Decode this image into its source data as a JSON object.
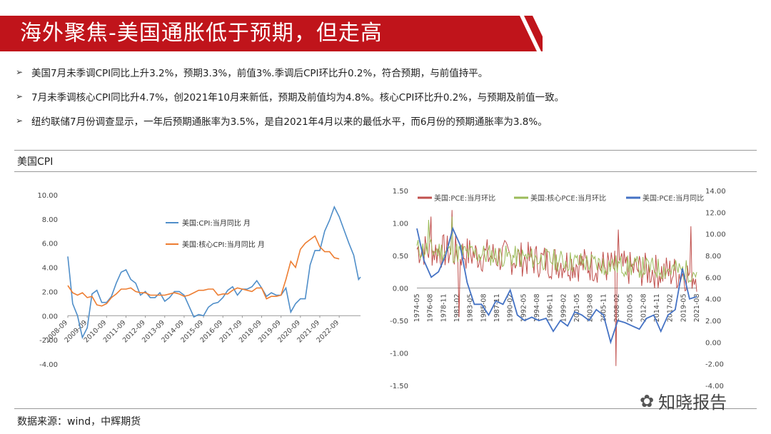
{
  "slide": {
    "title": "海外聚焦-美国通胀低于预期，但走高",
    "bullets": [
      "美国7月未季调CPI同比上升3.2%，预期3.3%，前值3%.季调后CPI环比升0.2%，符合预期，与前值持平。",
      "7月未季调核心CPI同比升4.7%，创2021年10月来新低，预期及前值均为4.8%。核心CPI环比升0.2%，与预期及前值一致。",
      "纽约联储7月份调查显示，一年后预期通胀率为3.5%，是自2021年4月以来的最低水平，而6月份的预期通胀率为3.8%。"
    ],
    "section_title": "美国CPI",
    "source": "数据来源：wind，中辉期货",
    "watermark": "知晓报告",
    "banner_color": "#c0141b"
  },
  "chart_data": [
    {
      "type": "line",
      "ylim": [
        -4,
        10
      ],
      "yticks": [
        "10.00",
        "8.00",
        "6.00",
        "4.00",
        "2.00",
        "0.00",
        "-2.00",
        "-4.00"
      ],
      "xticks": [
        "2008-09",
        "2009-09",
        "2010-09",
        "2011-09",
        "2012-09",
        "2013-09",
        "2014-09",
        "2015-09",
        "2016-09",
        "2017-09",
        "2018-09",
        "2019-09",
        "2020-09",
        "2021-09",
        "2022-09"
      ],
      "series": [
        {
          "name": "美国:CPI:当月同比 月",
          "color": "#4f8ec9",
          "points": [
            [
              0,
              4.9
            ],
            [
              0.25,
              1.0
            ],
            [
              0.5,
              0.0
            ],
            [
              0.75,
              -1.8
            ],
            [
              1,
              -1.0
            ],
            [
              1.25,
              1.8
            ],
            [
              1.5,
              2.1
            ],
            [
              1.75,
              1.1
            ],
            [
              2,
              1.1
            ],
            [
              2.25,
              1.6
            ],
            [
              2.5,
              2.7
            ],
            [
              2.75,
              3.6
            ],
            [
              3,
              3.8
            ],
            [
              3.25,
              3.0
            ],
            [
              3.5,
              2.7
            ],
            [
              3.75,
              1.7
            ],
            [
              4,
              2.0
            ],
            [
              4.25,
              1.5
            ],
            [
              4.5,
              1.5
            ],
            [
              4.75,
              1.9
            ],
            [
              5,
              1.2
            ],
            [
              5.25,
              1.5
            ],
            [
              5.5,
              2.0
            ],
            [
              5.75,
              2.0
            ],
            [
              6,
              1.7
            ],
            [
              6.25,
              0.8
            ],
            [
              6.5,
              -0.1
            ],
            [
              6.75,
              0.1
            ],
            [
              7,
              0.0
            ],
            [
              7.25,
              0.7
            ],
            [
              7.5,
              1.0
            ],
            [
              7.75,
              1.1
            ],
            [
              8,
              1.5
            ],
            [
              8.25,
              2.1
            ],
            [
              8.5,
              2.4
            ],
            [
              8.75,
              1.7
            ],
            [
              9,
              2.2
            ],
            [
              9.25,
              2.2
            ],
            [
              9.5,
              2.4
            ],
            [
              9.75,
              2.9
            ],
            [
              10,
              2.3
            ],
            [
              10.25,
              1.6
            ],
            [
              10.5,
              1.9
            ],
            [
              10.75,
              1.7
            ],
            [
              11,
              1.7
            ],
            [
              11.25,
              2.3
            ],
            [
              11.5,
              0.3
            ],
            [
              11.75,
              1.0
            ],
            [
              12,
              1.4
            ],
            [
              12.25,
              1.4
            ],
            [
              12.5,
              4.2
            ],
            [
              12.75,
              5.4
            ],
            [
              13,
              5.4
            ],
            [
              13.25,
              7.0
            ],
            [
              13.5,
              7.9
            ],
            [
              13.75,
              9.0
            ],
            [
              14,
              8.2
            ],
            [
              14.25,
              7.1
            ],
            [
              14.5,
              6.0
            ],
            [
              14.75,
              5.0
            ],
            [
              15,
              3.0
            ],
            [
              15.1,
              3.2
            ]
          ]
        },
        {
          "name": "美国:核心CPI:当月同比 月",
          "color": "#ed7d31",
          "points": [
            [
              0,
              2.5
            ],
            [
              0.25,
              1.9
            ],
            [
              0.5,
              1.7
            ],
            [
              0.75,
              1.9
            ],
            [
              1,
              1.5
            ],
            [
              1.25,
              1.6
            ],
            [
              1.5,
              0.9
            ],
            [
              1.75,
              0.8
            ],
            [
              2,
              1.0
            ],
            [
              2.25,
              1.5
            ],
            [
              2.5,
              1.8
            ],
            [
              2.75,
              2.2
            ],
            [
              3,
              2.2
            ],
            [
              3.25,
              2.3
            ],
            [
              3.5,
              2.0
            ],
            [
              3.75,
              1.9
            ],
            [
              4,
              1.9
            ],
            [
              4.25,
              1.7
            ],
            [
              4.5,
              1.7
            ],
            [
              4.75,
              1.7
            ],
            [
              5,
              1.7
            ],
            [
              5.25,
              1.8
            ],
            [
              5.5,
              1.9
            ],
            [
              5.75,
              1.8
            ],
            [
              6,
              1.6
            ],
            [
              6.25,
              1.7
            ],
            [
              6.5,
              1.9
            ],
            [
              6.75,
              2.1
            ],
            [
              7,
              2.1
            ],
            [
              7.25,
              2.2
            ],
            [
              7.5,
              2.2
            ],
            [
              7.75,
              1.7
            ],
            [
              8,
              1.8
            ],
            [
              8.25,
              1.8
            ],
            [
              8.5,
              2.1
            ],
            [
              8.75,
              2.3
            ],
            [
              9,
              2.2
            ],
            [
              9.25,
              2.1
            ],
            [
              9.5,
              2.0
            ],
            [
              9.75,
              2.3
            ],
            [
              10,
              2.3
            ],
            [
              10.25,
              1.4
            ],
            [
              10.5,
              1.6
            ],
            [
              10.75,
              1.6
            ],
            [
              11,
              1.7
            ],
            [
              11.25,
              3.0
            ],
            [
              11.5,
              4.5
            ],
            [
              11.75,
              4.0
            ],
            [
              12,
              5.5
            ],
            [
              12.25,
              6.0
            ],
            [
              12.5,
              6.3
            ],
            [
              12.75,
              6.6
            ],
            [
              13,
              5.7
            ],
            [
              13.25,
              5.3
            ],
            [
              13.5,
              5.3
            ],
            [
              13.75,
              4.8
            ],
            [
              14,
              4.7
            ]
          ]
        }
      ]
    },
    {
      "type": "line",
      "ylim": [
        -1.5,
        1.5
      ],
      "y2lim": [
        -4,
        14
      ],
      "yticks": [
        "1.50",
        "1.00",
        "0.50",
        "0.00",
        "-0.50",
        "-1.00",
        "-1.50"
      ],
      "y2ticks": [
        "14.00",
        "12.00",
        "10.00",
        "8.00",
        "6.00",
        "4.00",
        "2.00",
        "0.00",
        "-2.00",
        "-4.00"
      ],
      "xticks": [
        "1974-05",
        "1976-08",
        "1978-11",
        "1981-02",
        "1983-05",
        "1985-08",
        "1987-11",
        "1990-02",
        "1992-05",
        "1994-08",
        "1996-11",
        "1999-02",
        "2001-05",
        "2003-08",
        "2005-11",
        "2008-02",
        "2010-05",
        "2012-08",
        "2014-11",
        "2017-02",
        "2019-05",
        "2021-08"
      ],
      "series": [
        {
          "name": "美国:PCE:当月环比",
          "color": "#c0504d",
          "axis": "left"
        },
        {
          "name": "美国:核心PCE:当月环比",
          "color": "#9bbb59",
          "axis": "left"
        },
        {
          "name": "美国:PCE:当月同比",
          "color": "#4472c4",
          "axis": "right",
          "points": [
            [
              0,
              10.5
            ],
            [
              1,
              7.5
            ],
            [
              2,
              6.0
            ],
            [
              3,
              6.5
            ],
            [
              4,
              8.0
            ],
            [
              5,
              10.5
            ],
            [
              6,
              9.0
            ],
            [
              7,
              5.5
            ],
            [
              8,
              3.5
            ],
            [
              9,
              3.5
            ],
            [
              10,
              2.5
            ],
            [
              11,
              3.8
            ],
            [
              12,
              3.5
            ],
            [
              13,
              4.8
            ],
            [
              14,
              2.5
            ],
            [
              15,
              2.0
            ],
            [
              16,
              2.3
            ],
            [
              17,
              2.0
            ],
            [
              18,
              2.2
            ],
            [
              19,
              1.0
            ],
            [
              20,
              2.0
            ],
            [
              21,
              1.5
            ],
            [
              22,
              2.8
            ],
            [
              23,
              2.5
            ],
            [
              24,
              2.0
            ],
            [
              25,
              3.0
            ],
            [
              26,
              2.5
            ],
            [
              27,
              0.0
            ],
            [
              28,
              2.0
            ],
            [
              29,
              1.8
            ],
            [
              30,
              1.5
            ],
            [
              31,
              1.2
            ],
            [
              32,
              2.2
            ],
            [
              33,
              2.5
            ],
            [
              34,
              1.0
            ],
            [
              35,
              2.5
            ],
            [
              36,
              3.0
            ],
            [
              37,
              6.8
            ],
            [
              38,
              4.0
            ],
            [
              39,
              4.2
            ]
          ]
        }
      ]
    }
  ]
}
